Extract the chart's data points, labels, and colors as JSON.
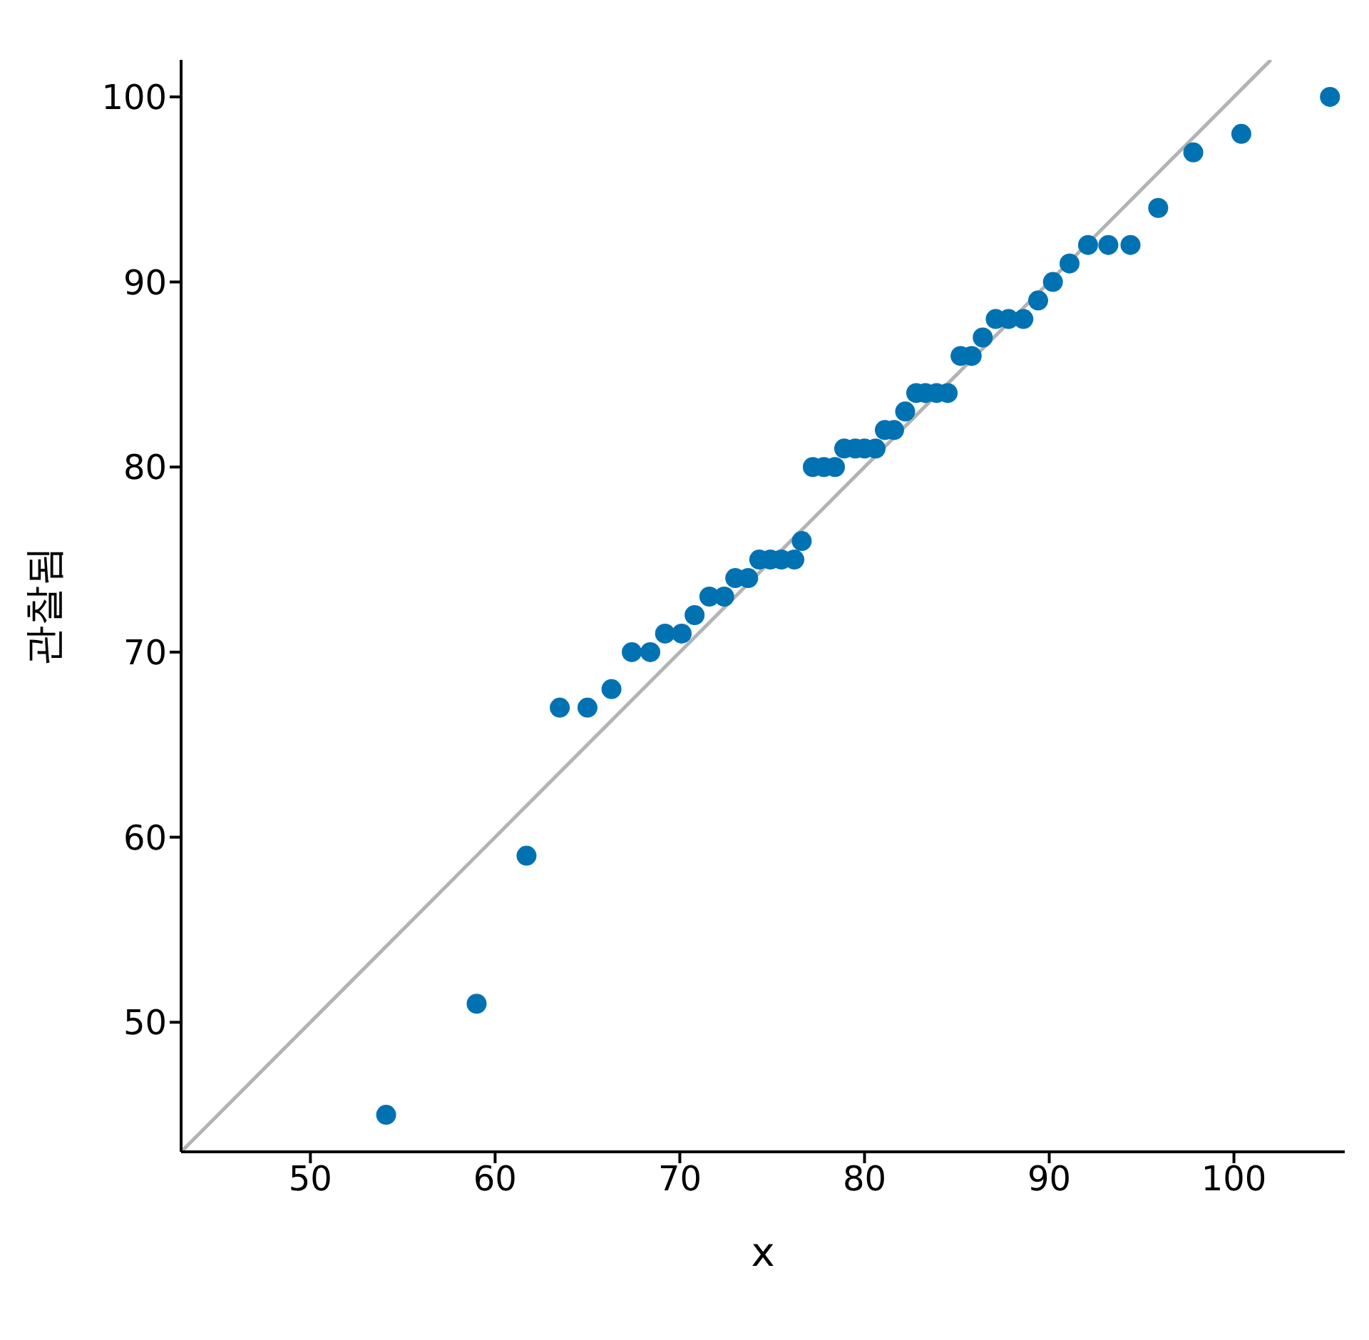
{
  "chart_data": {
    "type": "scatter",
    "xlabel": "x",
    "ylabel": "관찰됨",
    "xlim": [
      43,
      106
    ],
    "ylim": [
      43,
      102
    ],
    "xticks": [
      50,
      60,
      70,
      80,
      90,
      100
    ],
    "yticks": [
      50,
      60,
      70,
      80,
      90,
      100
    ],
    "grid": false,
    "marker": "circle",
    "series": [
      {
        "color": "#0072b2",
        "x": [
          54.1,
          59.0,
          61.7,
          63.5,
          65.0,
          66.3,
          67.4,
          68.4,
          69.2,
          70.1,
          70.8,
          71.6,
          72.4,
          73.0,
          73.7,
          74.3,
          74.9,
          75.5,
          76.2,
          76.6,
          77.2,
          77.8,
          78.4,
          78.9,
          79.5,
          80.0,
          80.6,
          81.1,
          81.6,
          82.2,
          82.8,
          83.3,
          83.9,
          84.5,
          85.2,
          85.8,
          86.4,
          87.1,
          87.8,
          88.6,
          89.4,
          90.2,
          91.1,
          92.1,
          93.2,
          94.4,
          95.9,
          97.8,
          100.4,
          105.2
        ],
        "values": [
          45,
          51,
          59,
          67,
          67,
          68,
          70,
          70,
          71,
          71,
          72,
          73,
          73,
          74,
          74,
          75,
          75,
          75,
          75,
          76,
          80,
          80,
          80,
          81,
          81,
          81,
          81,
          82,
          82,
          83,
          84,
          84,
          84,
          84,
          86,
          86,
          87,
          88,
          88,
          88,
          89,
          90,
          91,
          92,
          92,
          92,
          94,
          97,
          98,
          100
        ]
      },
      {
        "type": "line",
        "color": "#b3b3b3",
        "marker": "none",
        "line_style": "solid",
        "x": [
          43,
          102
        ],
        "values": [
          43,
          102
        ]
      }
    ]
  }
}
